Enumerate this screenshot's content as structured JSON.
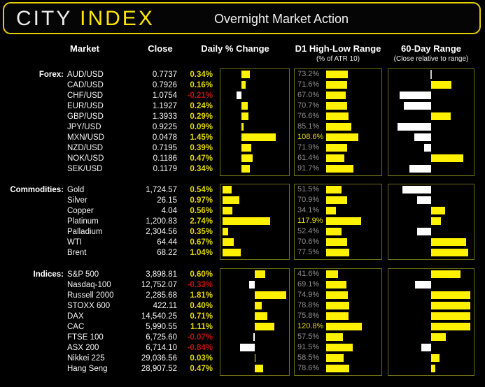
{
  "header": {
    "logo_city": "CITY",
    "logo_index": "INDEX",
    "title": "Overnight Market Action"
  },
  "columns": {
    "market": "Market",
    "close": "Close",
    "daily": "Daily % Change",
    "d1": "D1 High-Low Range",
    "d1_sub": "(% of ATR 10)",
    "range60": "60-Day Range",
    "range60_sub": "(Close relative to range)"
  },
  "colors": {
    "bar_yellow": "#FFF100",
    "bar_white": "#FFFFFF",
    "logo_yellow": "#FFE400",
    "header_border_yellow": "#E3CE00",
    "panel_border_olive": "#6E6E14",
    "positive_text": "#E5D800",
    "negative_text": "#C01010",
    "gray_label": "#8F8F8F",
    "background": "#000000"
  },
  "chart_data": [
    {
      "id": "forex",
      "label": "Forex:",
      "type": "bar",
      "daily_axis": [
        -0.9,
        2.0
      ],
      "d1_axis_note": "bar width = pct * 0.42px",
      "range60_axis": [
        0,
        100
      ],
      "rows": [
        {
          "market": "AUD/USD",
          "close": "0.7737",
          "daily_pct": 0.34,
          "daily_label": "0.34%",
          "d1_pct": 73.2,
          "d1_label": "73.2%",
          "range60_pct": 50
        },
        {
          "market": "CAD/USD",
          "close": "0.7926",
          "daily_pct": 0.16,
          "daily_label": "0.16%",
          "d1_pct": 71.6,
          "d1_label": "71.6%",
          "range60_pct": 75
        },
        {
          "market": "CHF/USD",
          "close": "1.0754",
          "daily_pct": -0.21,
          "daily_label": "-0.21%",
          "d1_pct": 67.0,
          "d1_label": "67.0%",
          "range60_pct": 11
        },
        {
          "market": "EUR/USD",
          "close": "1.1927",
          "daily_pct": 0.24,
          "daily_label": "0.24%",
          "d1_pct": 70.7,
          "d1_label": "70.7%",
          "range60_pct": 16
        },
        {
          "market": "GBP/USD",
          "close": "1.3933",
          "daily_pct": 0.29,
          "daily_label": "0.29%",
          "d1_pct": 76.6,
          "d1_label": "76.6%",
          "range60_pct": 74
        },
        {
          "market": "JPY/USD",
          "close": "0.9225",
          "daily_pct": 0.09,
          "daily_label": "0.09%",
          "d1_pct": 85.1,
          "d1_label": "85.1%",
          "range60_pct": 9
        },
        {
          "market": "MXN/USD",
          "close": "0.0478",
          "daily_pct": 1.45,
          "daily_label": "1.45%",
          "d1_pct": 108.6,
          "d1_label": "108.6%",
          "range60_pct": 29
        },
        {
          "market": "NZD/USD",
          "close": "0.7195",
          "daily_pct": 0.39,
          "daily_label": "0.39%",
          "d1_pct": 71.9,
          "d1_label": "71.9%",
          "range60_pct": 41
        },
        {
          "market": "NOK/USD",
          "close": "0.1186",
          "daily_pct": 0.47,
          "daily_label": "0.47%",
          "d1_pct": 61.4,
          "d1_label": "61.4%",
          "range60_pct": 90
        },
        {
          "market": "SEK/USD",
          "close": "0.1179",
          "daily_pct": 0.34,
          "daily_label": "0.34%",
          "d1_pct": 91.7,
          "d1_label": "91.7%",
          "range60_pct": 23
        }
      ]
    },
    {
      "id": "commodities",
      "label": "Commodities:",
      "type": "bar",
      "daily_axis": [
        -0.1,
        3.8
      ],
      "range60_axis": [
        0,
        100
      ],
      "rows": [
        {
          "market": "Gold",
          "close": "1,724.57",
          "daily_pct": 0.54,
          "daily_label": "0.54%",
          "d1_pct": 51.5,
          "d1_label": "51.5%",
          "range60_pct": 15
        },
        {
          "market": "Silver",
          "close": "26.15",
          "daily_pct": 0.97,
          "daily_label": "0.97%",
          "d1_pct": 70.9,
          "d1_label": "70.9%",
          "range60_pct": 33
        },
        {
          "market": "Copper",
          "close": "4.04",
          "daily_pct": 0.56,
          "daily_label": "0.56%",
          "d1_pct": 34.1,
          "d1_label": "34.1%",
          "range60_pct": 67
        },
        {
          "market": "Platinum",
          "close": "1,200.83",
          "daily_pct": 2.74,
          "daily_label": "2.74%",
          "d1_pct": 117.9,
          "d1_label": "117.9%",
          "range60_pct": 62
        },
        {
          "market": "Palladium",
          "close": "2,304.56",
          "daily_pct": 0.35,
          "daily_label": "0.35%",
          "d1_pct": 52.4,
          "d1_label": "52.4%",
          "range60_pct": 33
        },
        {
          "market": "WTI",
          "close": "64.44",
          "daily_pct": 0.67,
          "daily_label": "0.67%",
          "d1_pct": 70.6,
          "d1_label": "70.6%",
          "range60_pct": 93
        },
        {
          "market": "Brent",
          "close": "68.22",
          "daily_pct": 1.04,
          "daily_label": "1.04%",
          "d1_pct": 77.5,
          "d1_label": "77.5%",
          "range60_pct": 96
        }
      ]
    },
    {
      "id": "indices",
      "label": "Indices:",
      "type": "bar",
      "daily_axis": [
        -1.95,
        1.95
      ],
      "range60_axis": [
        0,
        100
      ],
      "rows": [
        {
          "market": "S&P 500",
          "close": "3,898.81",
          "daily_pct": 0.6,
          "daily_label": "0.60%",
          "d1_pct": 41.6,
          "d1_label": "41.6%",
          "range60_pct": 86
        },
        {
          "market": "Nasdaq-100",
          "close": "12,752.07",
          "daily_pct": -0.33,
          "daily_label": "-0.33%",
          "d1_pct": 69.1,
          "d1_label": "69.1%",
          "range60_pct": 30
        },
        {
          "market": "Russell 2000",
          "close": "2,285.68",
          "daily_pct": 1.81,
          "daily_label": "1.81%",
          "d1_pct": 74.9,
          "d1_label": "74.9%",
          "range60_pct": 98
        },
        {
          "market": "STOXX 600",
          "close": "422.11",
          "daily_pct": 0.4,
          "daily_label": "0.40%",
          "d1_pct": 78.8,
          "d1_label": "78.8%",
          "range60_pct": 98
        },
        {
          "market": "DAX",
          "close": "14,540.25",
          "daily_pct": 0.71,
          "daily_label": "0.71%",
          "d1_pct": 75.8,
          "d1_label": "75.8%",
          "range60_pct": 98
        },
        {
          "market": "CAC",
          "close": "5,990.55",
          "daily_pct": 1.11,
          "daily_label": "1.11%",
          "d1_pct": 120.8,
          "d1_label": "120.8%",
          "range60_pct": 98
        },
        {
          "market": "FTSE 100",
          "close": "6,725.60",
          "daily_pct": -0.07,
          "daily_label": "-0.07%",
          "d1_pct": 57.5,
          "d1_label": "57.5%",
          "range60_pct": 68
        },
        {
          "market": "ASX 200",
          "close": "6,714.10",
          "daily_pct": -0.84,
          "daily_label": "-0.84%",
          "d1_pct": 91.5,
          "d1_label": "91.5%",
          "range60_pct": 38
        },
        {
          "market": "Nikkei 225",
          "close": "29,036.56",
          "daily_pct": 0.03,
          "daily_label": "0.03%",
          "d1_pct": 58.5,
          "d1_label": "58.5%",
          "range60_pct": 60
        },
        {
          "market": "Hang Seng",
          "close": "28,907.52",
          "daily_pct": 0.47,
          "daily_label": "0.47%",
          "d1_pct": 78.6,
          "d1_label": "78.6%",
          "range60_pct": 55
        }
      ]
    }
  ]
}
